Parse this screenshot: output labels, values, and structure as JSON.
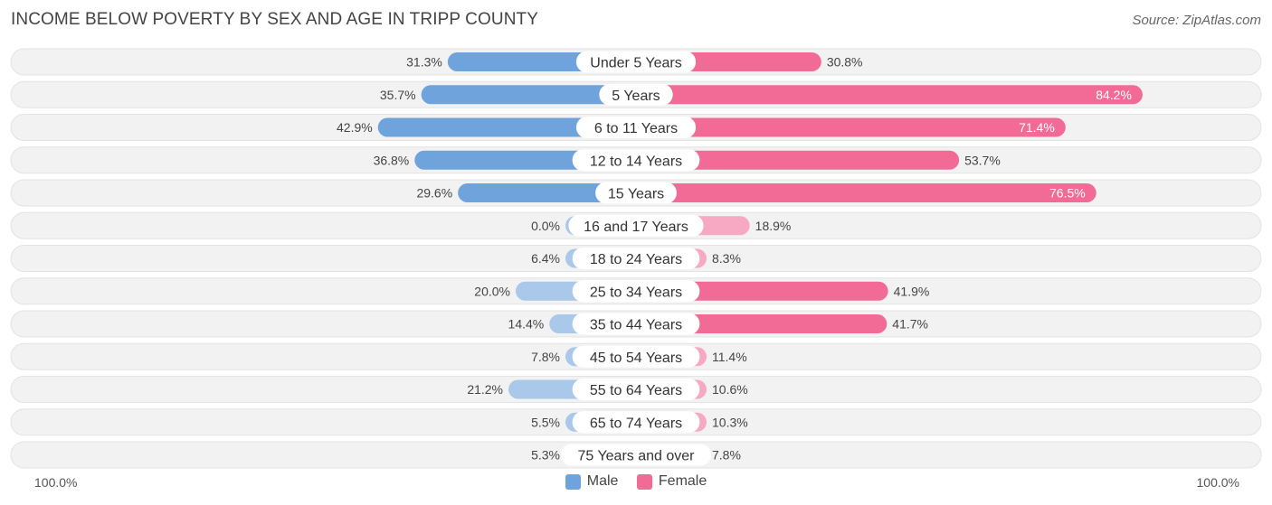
{
  "header": {
    "title": "INCOME BELOW POVERTY BY SEX AND AGE IN TRIPP COUNTY",
    "source": "Source: ZipAtlas.com"
  },
  "axis": {
    "left_label": "100.0%",
    "right_label": "100.0%"
  },
  "legend": {
    "male_label": "Male",
    "female_label": "Female"
  },
  "colors": {
    "male_strong": "#6ea3dc",
    "male_light": "#a9c8ea",
    "female_strong": "#f26b97",
    "female_light": "#f7a8c2",
    "row_bg": "#f2f2f2",
    "row_border": "#e3e3e3"
  },
  "chart_data": {
    "type": "bar",
    "orientation": "diverging-horizontal",
    "title": "INCOME BELOW POVERTY BY SEX AND AGE IN TRIPP COUNTY",
    "xlim": [
      -100,
      100
    ],
    "categories": [
      "Under 5 Years",
      "5 Years",
      "6 to 11 Years",
      "12 to 14 Years",
      "15 Years",
      "16 and 17 Years",
      "18 to 24 Years",
      "25 to 34 Years",
      "35 to 44 Years",
      "45 to 54 Years",
      "55 to 64 Years",
      "65 to 74 Years",
      "75 Years and over"
    ],
    "series": [
      {
        "name": "Male",
        "values": [
          31.3,
          35.7,
          42.9,
          36.8,
          29.6,
          0.0,
          6.4,
          20.0,
          14.4,
          7.8,
          21.2,
          5.5,
          5.3
        ],
        "labels": [
          "31.3%",
          "35.7%",
          "42.9%",
          "36.8%",
          "29.6%",
          "0.0%",
          "6.4%",
          "20.0%",
          "14.4%",
          "7.8%",
          "21.2%",
          "5.5%",
          "5.3%"
        ]
      },
      {
        "name": "Female",
        "values": [
          30.8,
          84.2,
          71.4,
          53.7,
          76.5,
          18.9,
          8.3,
          41.9,
          41.7,
          11.4,
          10.6,
          10.3,
          7.8
        ],
        "labels": [
          "30.8%",
          "84.2%",
          "71.4%",
          "53.7%",
          "76.5%",
          "18.9%",
          "8.3%",
          "41.9%",
          "41.7%",
          "11.4%",
          "10.6%",
          "10.3%",
          "7.8%"
        ]
      }
    ],
    "legend_position": "bottom-center"
  }
}
